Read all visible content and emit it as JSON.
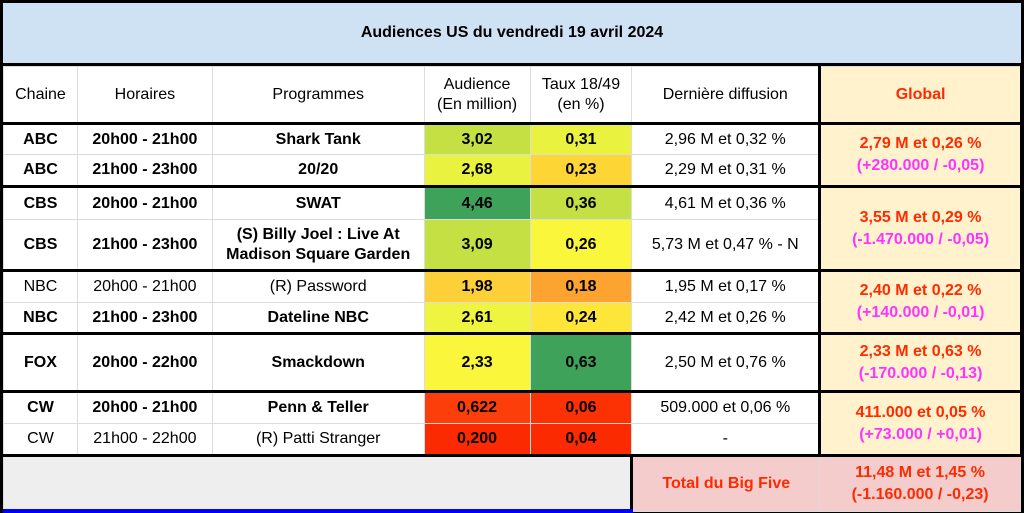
{
  "title": "Audiences US du vendredi 19 avril 2024",
  "headers": {
    "chaine": "Chaine",
    "horaires": "Horaires",
    "programmes": "Programmes",
    "audience_l1": "Audience",
    "audience_l2": "(En million)",
    "taux_l1": "Taux 18/49",
    "taux_l2": "(en %)",
    "derniere": "Dernière diffusion",
    "global": "Global"
  },
  "colors": {
    "title_bg": "#cfe2f3",
    "global_bg": "#fff2cc",
    "global_main": "#ff2a00",
    "global_sub": "#ff33ff",
    "total_bg": "#f4cccc"
  },
  "rows": [
    {
      "chaine": "ABC",
      "horaires": "20h00 - 21h00",
      "programme": "Shark Tank",
      "audience": "3,02",
      "taux": "0,31",
      "derniere": "2,96 M et 0,32 %",
      "bold": true,
      "aud_color": "#c5e043",
      "taux_color": "#e8f23f"
    },
    {
      "chaine": "ABC",
      "horaires": "21h00 - 23h00",
      "programme": "20/20",
      "audience": "2,68",
      "taux": "0,23",
      "derniere": "2,29 M et 0,31 %",
      "bold": true,
      "aud_color": "#e8f23f",
      "taux_color": "#fdd535"
    },
    {
      "chaine": "CBS",
      "horaires": "20h00 - 21h00",
      "programme": "SWAT",
      "audience": "4,46",
      "taux": "0,36",
      "derniere": "4,61 M et 0,36 %",
      "bold": true,
      "aud_color": "#3fa25a",
      "taux_color": "#c5e043"
    },
    {
      "chaine": "CBS",
      "horaires": "21h00 - 23h00",
      "programme": "(S) Billy Joel : Live At Madison Square Garden",
      "audience": "3,09",
      "taux": "0,26",
      "derniere": "5,73 M et 0,47 % - N",
      "bold": true,
      "aud_color": "#c5e043",
      "taux_color": "#f9f63b"
    },
    {
      "chaine": "NBC",
      "horaires": "20h00 - 21h00",
      "programme": "(R) Password",
      "audience": "1,98",
      "taux": "0,18",
      "derniere": "1,95 M et 0,17 %",
      "bold": false,
      "aud_color": "#fdcf38",
      "taux_color": "#fca330"
    },
    {
      "chaine": "NBC",
      "horaires": "21h00 - 23h00",
      "programme": "Dateline NBC",
      "audience": "2,61",
      "taux": "0,24",
      "derniere": "2,42 M et 0,26 %",
      "bold": true,
      "aud_color": "#eef43f",
      "taux_color": "#fde53a"
    },
    {
      "chaine": "FOX",
      "horaires": "20h00 - 22h00",
      "programme": "Smackdown",
      "audience": "2,33",
      "taux": "0,63",
      "derniere": "2,50 M et 0,76 %",
      "bold": true,
      "aud_color": "#f9f63b",
      "taux_color": "#3fa25a"
    },
    {
      "chaine": "CW",
      "horaires": "20h00 - 21h00",
      "programme": "Penn & Teller",
      "audience": "0,622",
      "taux": "0,06",
      "derniere": "509.000 et 0,06 %",
      "bold": true,
      "aud_color": "#fc3f0a",
      "taux_color": "#fc3205"
    },
    {
      "chaine": "CW",
      "horaires": "21h00 - 22h00",
      "programme": "(R) Patti Stranger",
      "audience": "0,200",
      "taux": "0,04",
      "derniere": "-",
      "bold": false,
      "aud_color": "#fc2a00",
      "taux_color": "#fc2a00"
    }
  ],
  "globals": [
    {
      "main": "2,79 M et 0,26 %",
      "sub": "(+280.000 / -0,05)"
    },
    {
      "main": "3,55 M et 0,29 %",
      "sub": "(-1.470.000 / -0,05)"
    },
    {
      "main": "2,40 M et 0,22 %",
      "sub": "(+140.000 / -0,01)"
    },
    {
      "main": "2,33 M et 0,63 %",
      "sub": "(-170.000 / -0,13)"
    },
    {
      "main": "411.000 et 0,05 %",
      "sub": "(+73.000 / +0,01)"
    }
  ],
  "footer": {
    "total_label": "Total du Big Five",
    "total_main": "11,48 M et 1,45 %",
    "total_sub": "(-1.160.000 / -0,23)"
  }
}
